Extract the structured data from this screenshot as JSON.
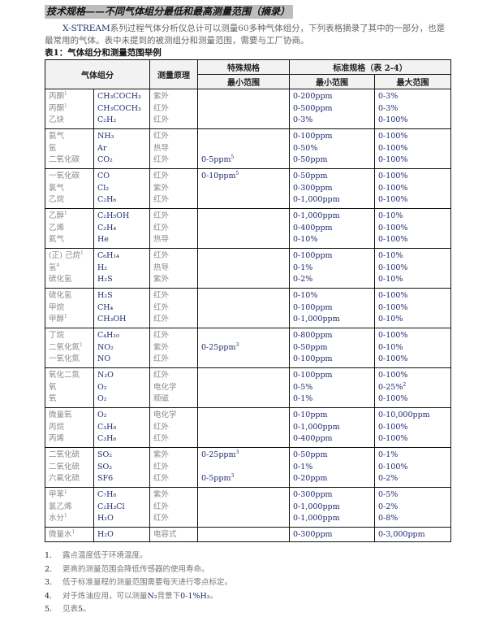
{
  "title": "技术规格——不同气体组分最低和最高测量范围（摘录）",
  "intro": {
    "brand": "X-STREAM",
    "text": "系列过程气体分析仪总计可以测量60多种气体组分，下列表格摘录了其中的一部分，也是最常用的气体。表中未提到的被测组分和测量范围，需要与工厂协商。"
  },
  "table_title": "表1：气体组分和测量范围举例",
  "table": {
    "headers": {
      "gas": "气体组分",
      "principle": "测量原理",
      "special": "特殊规格",
      "standard": "标准规格（表 2-4）",
      "special_min": "最小范围",
      "std_min": "最小范围",
      "std_max": "最大范围"
    },
    "groups": [
      [
        [
          "丙酮",
          "1",
          "CH₃COCH₃",
          "紫外",
          "",
          "",
          "0-200ppm",
          "0-3%",
          ""
        ],
        [
          "丙酮",
          "1",
          "CH₃COCH₃",
          "红外",
          "",
          "",
          "0-500ppm",
          "0-3%",
          ""
        ],
        [
          "乙炔",
          "",
          "C₂H₂",
          "红外",
          "",
          "",
          "0-3%",
          "0-100%",
          ""
        ]
      ],
      [
        [
          "氨气",
          "",
          "NH₃",
          "红外",
          "",
          "",
          "0-100ppm",
          "0-100%",
          ""
        ],
        [
          "氩",
          "",
          "Ar",
          "热导",
          "",
          "",
          "0-50%",
          "0-100%",
          ""
        ],
        [
          "二氧化碳",
          "",
          "CO₂",
          "红外",
          "0-5ppm",
          "5",
          "0-50ppm",
          "0-100%",
          ""
        ]
      ],
      [
        [
          "一氧化碳",
          "",
          "CO",
          "红外",
          "0-10ppm",
          "5",
          "0-50ppm",
          "0-100%",
          ""
        ],
        [
          "氯气",
          "",
          "Cl₂",
          "紫外",
          "",
          "",
          "0-300ppm",
          "0-100%",
          ""
        ],
        [
          "乙烷",
          "",
          "C₂H₆",
          "红外",
          "",
          "",
          "0-1,000ppm",
          "0-100%",
          ""
        ]
      ],
      [
        [
          "乙醇",
          "1",
          "C₂H₅OH",
          "红外",
          "",
          "",
          "0-1,000ppm",
          "0-10%",
          ""
        ],
        [
          "乙烯",
          "",
          "C₂H₄",
          "红外",
          "",
          "",
          "0-400ppm",
          "0-100%",
          ""
        ],
        [
          "氦气",
          "",
          "He",
          "热导",
          "",
          "",
          "0-10%",
          "0-100%",
          ""
        ]
      ],
      [
        [
          "(正) 己烷",
          "1",
          "C₆H₁₄",
          "红外",
          "",
          "",
          "0-100ppm",
          "0-10%",
          ""
        ],
        [
          "氢",
          "4",
          "H₂",
          "热导",
          "",
          "",
          "0-1%",
          "0-100%",
          ""
        ],
        [
          "硫化氢",
          "",
          "H₂S",
          "紫外",
          "",
          "",
          "0-2%",
          "0-10%",
          ""
        ]
      ],
      [
        [
          "硫化氢",
          "",
          "H₂S",
          "红外",
          "",
          "",
          "0-10%",
          "0-100%",
          ""
        ],
        [
          "甲烷",
          "",
          "CH₄",
          "红外",
          "",
          "",
          "0-100ppm",
          "0-100%",
          ""
        ],
        [
          "甲醇",
          "1",
          "CH₃OH",
          "红外",
          "",
          "",
          "0-1,000ppm",
          "0-10%",
          ""
        ]
      ],
      [
        [
          "丁烷",
          "",
          "C₄H₁₀",
          "红外",
          "",
          "",
          "0-800ppm",
          "0-100%",
          ""
        ],
        [
          "二氧化氮",
          "1",
          "NO₂",
          "紫外",
          "0-25ppm",
          "3",
          "0-50ppm",
          "0-10%",
          ""
        ],
        [
          "一氧化氮",
          "",
          "NO",
          "红外",
          "",
          "",
          "0-100ppm",
          "0-100%",
          ""
        ]
      ],
      [
        [
          "氧化二氮",
          "",
          "N₂O",
          "红外",
          "",
          "",
          "0-100ppm",
          "0-100%",
          ""
        ],
        [
          "氧",
          "",
          "O₂",
          "电化学",
          "",
          "",
          "0-5%",
          "0-25%",
          "2"
        ],
        [
          "氧",
          "",
          "O₂",
          "顺磁",
          "",
          "",
          "0-1%",
          "0-100%",
          ""
        ]
      ],
      [
        [
          "微量氧",
          "",
          "O₂",
          "电化学",
          "",
          "",
          "0-10ppm",
          "0-10,000ppm",
          ""
        ],
        [
          "丙烷",
          "",
          "C₃H₈",
          "红外",
          "",
          "",
          "0-1,000ppm",
          "0-100%",
          ""
        ],
        [
          "丙烯",
          "",
          "C₃H₆",
          "红外",
          "",
          "",
          "0-400ppm",
          "0-100%",
          ""
        ]
      ],
      [
        [
          "二氧化硫",
          "",
          "SO₂",
          "紫外",
          "0-25ppm",
          "3",
          "0-50ppm",
          "0-1%",
          ""
        ],
        [
          "二氧化硫",
          "",
          "SO₂",
          "红外",
          "",
          "",
          "0-1%",
          "0-100%",
          ""
        ],
        [
          "六氟化硫",
          "",
          "SF6",
          "红外",
          "0-5ppm",
          "3",
          "0-20ppm",
          "0-2%",
          ""
        ]
      ],
      [
        [
          "甲苯",
          "1",
          "C₇H₈",
          "紫外",
          "",
          "",
          "0-300ppm",
          "0-5%",
          ""
        ],
        [
          "氯乙烯",
          "",
          "C₂H₃Cl",
          "红外",
          "",
          "",
          "0-1,000ppm",
          "0-2%",
          ""
        ],
        [
          "水分",
          "1",
          "H₂O",
          "红外",
          "",
          "",
          "0-1,000ppm",
          "0-8%",
          ""
        ]
      ],
      [
        [
          "微量水",
          "1",
          "H₂O",
          "电容式",
          "",
          "",
          "0-300ppm",
          "0-3,000ppm",
          ""
        ]
      ]
    ]
  },
  "notes": [
    {
      "num": "1.",
      "text": "露点温度低于环境温度。"
    },
    {
      "num": "2.",
      "text": "更高的测量范围会降低传感器的使用寿命。"
    },
    {
      "num": "3.",
      "text": "低于标准量程的测量范围需要每天进行零点标定。"
    },
    {
      "num": "4.",
      "text": "对于炼油应用，可以测量",
      "blue": "N₂",
      "text2": "背景下",
      "blue2": "0-1%H₂",
      "text3": "。"
    },
    {
      "num": "5.",
      "text": "见表",
      "blue": "5",
      "text2": "。"
    }
  ]
}
